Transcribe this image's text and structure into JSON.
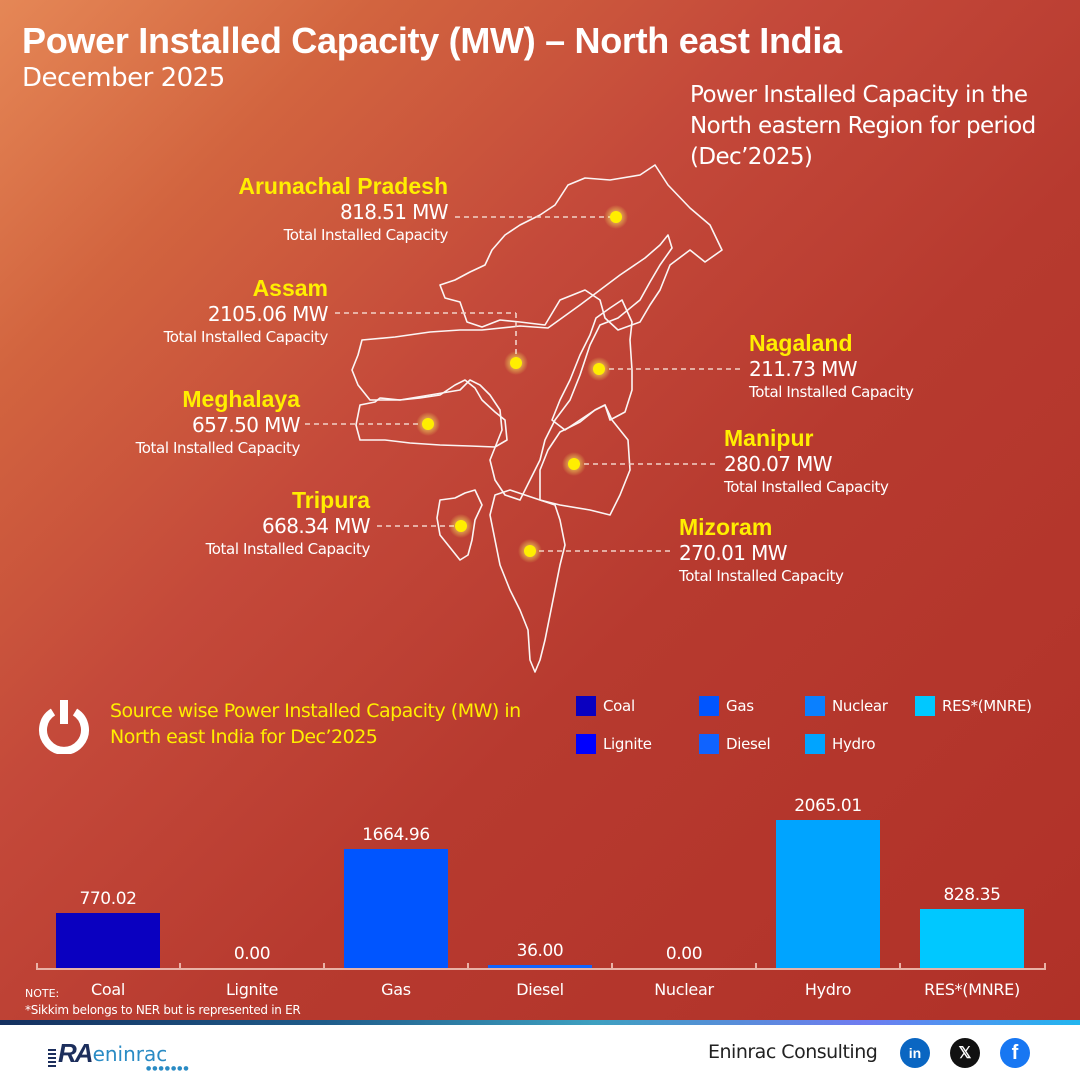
{
  "header": {
    "title": "Power Installed Capacity (MW) – North east India",
    "subtitle": "December 2025",
    "region_note": "Power Installed Capacity in the North eastern Region for period (Dec’2025)"
  },
  "states": [
    {
      "name": "Arunachal Pradesh",
      "value": "818.51 MW",
      "caption": "Total Installed Capacity"
    },
    {
      "name": "Assam",
      "value": "2105.06 MW",
      "caption": "Total Installed Capacity"
    },
    {
      "name": "Meghalaya",
      "value": "657.50 MW",
      "caption": "Total Installed Capacity"
    },
    {
      "name": "Tripura",
      "value": "668.34 MW",
      "caption": "Total Installed Capacity"
    },
    {
      "name": "Nagaland",
      "value": "211.73 MW",
      "caption": "Total Installed Capacity"
    },
    {
      "name": "Manipur",
      "value": "280.07 MW",
      "caption": "Total Installed Capacity"
    },
    {
      "name": "Mizoram",
      "value": "270.01 MW",
      "caption": "Total Installed Capacity"
    }
  ],
  "source_section": {
    "heading": "Source wise Power Installed Capacity (MW) in North east India for Dec’2025",
    "icon": "power-icon"
  },
  "legend": [
    {
      "label": "Coal",
      "color": "#0a00c0"
    },
    {
      "label": "Gas",
      "color": "#0055ff"
    },
    {
      "label": "Nuclear",
      "color": "#0a80ff"
    },
    {
      "label": "RES*(MNRE)",
      "color": "#00c8ff"
    },
    {
      "label": "Lignite",
      "color": "#0000ff"
    },
    {
      "label": "Diesel",
      "color": "#0f63ff"
    },
    {
      "label": "Hydro",
      "color": "#00a4ff"
    }
  ],
  "chart_data": {
    "type": "bar",
    "title": "Source wise Power Installed Capacity (MW) in North east India for Dec’2025",
    "categories": [
      "Coal",
      "Lignite",
      "Gas",
      "Diesel",
      "Nuclear",
      "Hydro",
      "RES*(MNRE)"
    ],
    "values": [
      770.02,
      0.0,
      1664.96,
      36.0,
      0.0,
      2065.01,
      828.35
    ],
    "value_labels": [
      "770.02",
      "0.00",
      "1664.96",
      "36.00",
      "0.00",
      "2065.01",
      "828.35"
    ],
    "colors": [
      "#0a00c0",
      "#0000ff",
      "#0055ff",
      "#0f63ff",
      "#0a80ff",
      "#00a4ff",
      "#00c8ff"
    ],
    "xlabel": "",
    "ylabel": "MW",
    "ylim": [
      0,
      2065.01
    ],
    "grid": false,
    "legend_position": "top-right"
  },
  "note": {
    "label": "NOTE:",
    "text": "*Sikkim belongs to NER but is represented in ER"
  },
  "footer": {
    "logo_mark": "RA",
    "logo_text": "eninrac",
    "brand": "Eninrac Consulting",
    "social": [
      {
        "name": "linkedin-icon",
        "glyph": "in",
        "color": "#0a66c2"
      },
      {
        "name": "x-icon",
        "glyph": "𝕏",
        "color": "#111111"
      },
      {
        "name": "facebook-icon",
        "glyph": "f",
        "color": "#1877f2"
      }
    ]
  }
}
